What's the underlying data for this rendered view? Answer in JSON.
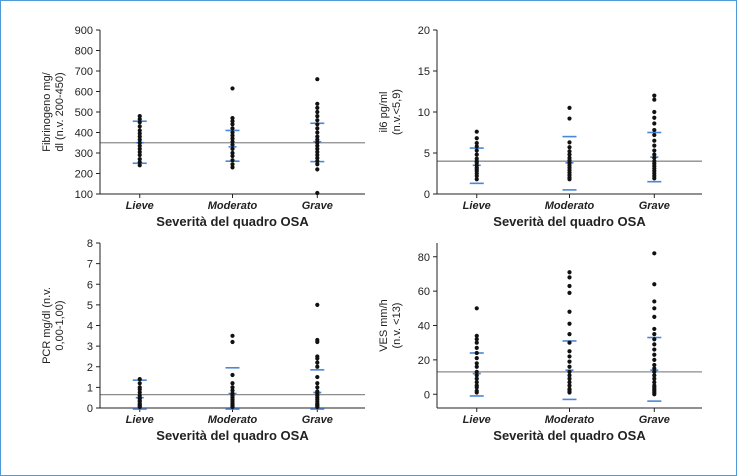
{
  "colors": {
    "frame": "#4f9bd8",
    "point": "#111111",
    "sd_marker": "#4a86d9",
    "reference_line": "#8c8c8c",
    "axis": "#222222"
  },
  "chart_data": [
    {
      "type": "scatter",
      "ylabel_lines": [
        "Fibrinogeno mg/",
        "dl (n.v. 200-450)"
      ],
      "xlabel": "Severità del quadro OSA",
      "categories": [
        "Lieve",
        "Moderato",
        "Grave"
      ],
      "ylim": [
        100,
        900
      ],
      "yticks": [
        100,
        200,
        300,
        400,
        500,
        600,
        700,
        800,
        900
      ],
      "reference_line": 350,
      "sd_markers": [
        [
          250,
          455
        ],
        [
          260,
          410
        ],
        [
          258,
          445
        ]
      ],
      "mean_markers": [
        350,
        330,
        355
      ],
      "points": [
        [
          240,
          255,
          270,
          290,
          305,
          320,
          335,
          350,
          365,
          380,
          395,
          410,
          430,
          450,
          465,
          480
        ],
        [
          230,
          245,
          265,
          285,
          300,
          320,
          340,
          355,
          370,
          385,
          400,
          420,
          440,
          455,
          470,
          615
        ],
        [
          105,
          220,
          245,
          260,
          275,
          290,
          305,
          320,
          335,
          350,
          365,
          380,
          400,
          420,
          440,
          460,
          480,
          500,
          520,
          540,
          660
        ]
      ]
    },
    {
      "type": "scatter",
      "ylabel_lines": [
        "il6 pg/ml",
        "(n.v.<5,9)"
      ],
      "xlabel": "Severità del quadro OSA",
      "categories": [
        "Lieve",
        "Moderato",
        "Grave"
      ],
      "ylim": [
        0,
        20
      ],
      "yticks": [
        0,
        5,
        10,
        15,
        20
      ],
      "reference_line": 4,
      "sd_markers": [
        [
          1.3,
          5.6
        ],
        [
          0.5,
          7.0
        ],
        [
          1.5,
          7.5
        ]
      ],
      "mean_markers": [
        3.5,
        3.8,
        4.5
      ],
      "points": [
        [
          1.8,
          2.2,
          2.5,
          2.8,
          3.0,
          3.2,
          3.5,
          3.8,
          4.0,
          4.3,
          4.8,
          5.3,
          5.8,
          6.2,
          6.8,
          7.6
        ],
        [
          1.8,
          2.0,
          2.3,
          2.6,
          2.9,
          3.2,
          3.5,
          3.8,
          4.1,
          4.4,
          4.8,
          5.2,
          5.7,
          6.3,
          9.2,
          10.5
        ],
        [
          1.9,
          2.2,
          2.5,
          2.8,
          3.1,
          3.4,
          3.7,
          4.0,
          4.4,
          4.8,
          5.3,
          5.9,
          6.5,
          7.2,
          7.8,
          8.6,
          9.3,
          10.0,
          11.5,
          12.0
        ]
      ]
    },
    {
      "type": "scatter",
      "ylabel_lines": [
        "PCR mg/dl (n.v.",
        "0,00-1,00)"
      ],
      "xlabel": "Severità del quadro OSA",
      "categories": [
        "Lieve",
        "Moderato",
        "Grave"
      ],
      "ylim": [
        0,
        8
      ],
      "yticks": [
        0,
        1,
        2,
        3,
        4,
        5,
        6,
        7,
        8
      ],
      "reference_line": 0.65,
      "sd_markers": [
        [
          -0.05,
          1.35
        ],
        [
          -0.05,
          1.95
        ],
        [
          -0.05,
          1.85
        ]
      ],
      "mean_markers": [
        0.5,
        0.7,
        0.75
      ],
      "points": [
        [
          0.05,
          0.1,
          0.15,
          0.2,
          0.3,
          0.35,
          0.45,
          0.5,
          0.6,
          0.75,
          0.9,
          1.0,
          1.2,
          1.4
        ],
        [
          0.05,
          0.1,
          0.15,
          0.2,
          0.3,
          0.4,
          0.5,
          0.6,
          0.7,
          0.85,
          1.0,
          1.2,
          1.6,
          3.2,
          3.5
        ],
        [
          0.05,
          0.1,
          0.15,
          0.2,
          0.3,
          0.4,
          0.5,
          0.6,
          0.7,
          0.8,
          1.0,
          1.2,
          1.5,
          2.0,
          2.2,
          2.4,
          2.5,
          3.2,
          3.3,
          5.0
        ]
      ]
    },
    {
      "type": "scatter",
      "ylabel_lines": [
        "VES mm/h",
        "(n.v. <13)"
      ],
      "xlabel": "Severità del quadro OSA",
      "categories": [
        "Lieve",
        "Moderato",
        "Grave"
      ],
      "ylim": [
        -8,
        88
      ],
      "yticks": [
        0,
        20,
        40,
        60,
        80
      ],
      "reference_line": 13,
      "sd_markers": [
        [
          -1,
          24
        ],
        [
          -3,
          31
        ],
        [
          -4,
          33
        ]
      ],
      "mean_markers": [
        12,
        14,
        14
      ],
      "points": [
        [
          1,
          2,
          4,
          5,
          7,
          9,
          11,
          13,
          16,
          18,
          21,
          24,
          27,
          30,
          32,
          34,
          50
        ],
        [
          1,
          2,
          3,
          5,
          7,
          9,
          11,
          13,
          16,
          19,
          22,
          25,
          30,
          35,
          41,
          48,
          59,
          63,
          68,
          71
        ],
        [
          0,
          1,
          2,
          3,
          4,
          5,
          7,
          9,
          11,
          13,
          15,
          17,
          20,
          23,
          26,
          29,
          32,
          35,
          38,
          45,
          50,
          54,
          64,
          82
        ]
      ]
    }
  ]
}
